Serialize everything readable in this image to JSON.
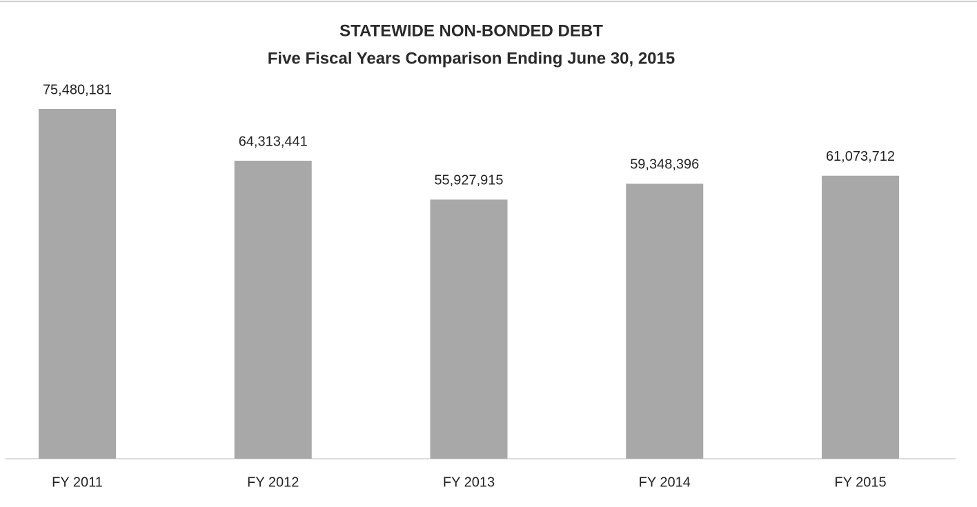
{
  "chart_data": {
    "type": "bar",
    "title": "STATEWIDE NON-BONDED DEBT",
    "subtitle": "Five Fiscal Years Comparison Ending June 30, 2015",
    "categories": [
      "FY 2011",
      "FY 2012",
      "FY 2013",
      "FY 2014",
      "FY 2015"
    ],
    "values": [
      75480181,
      64313441,
      55927915,
      59348396,
      61073712
    ],
    "value_labels": [
      "75,480,181",
      "64,313,441",
      "55,927,915",
      "59,348,396",
      "61,073,712"
    ],
    "color": "#a8a8a8"
  }
}
